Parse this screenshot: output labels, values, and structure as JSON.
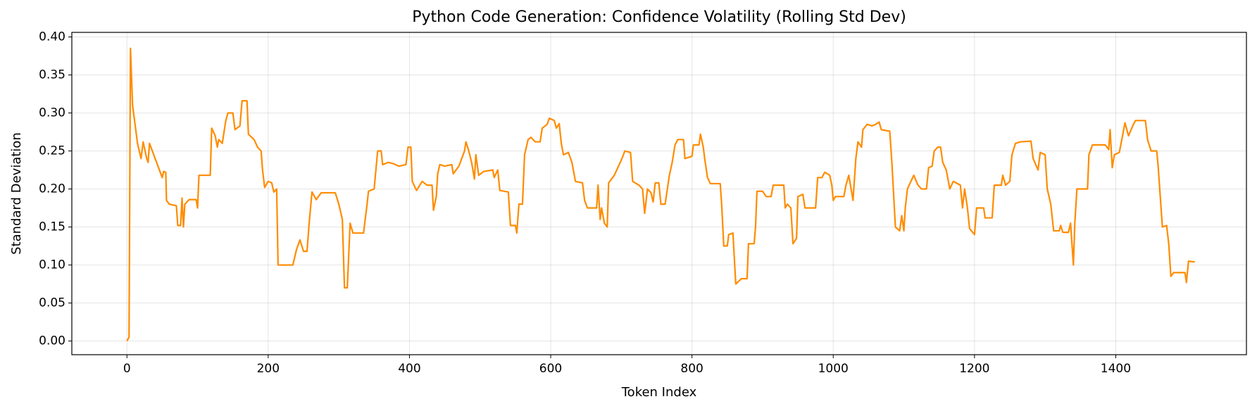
{
  "chart_data": {
    "type": "line",
    "title": "Python Code Generation: Confidence Volatility (Rolling Std Dev)",
    "x_label": "Token Index",
    "y_label": "Standard Deviation",
    "color": "#ff8c00",
    "grid": true,
    "xlim": [
      -78,
      1585
    ],
    "ylim": [
      -0.018,
      0.406
    ],
    "xticks": [
      0,
      200,
      400,
      600,
      800,
      1000,
      1200,
      1400
    ],
    "yticks": [
      {
        "value": 0,
        "label": "0.00"
      },
      0.05,
      {
        "value": 0.1,
        "label": "0.10"
      },
      0.15,
      {
        "value": 0.2,
        "label": "0.20"
      },
      0.25,
      {
        "value": 0.3,
        "label": "0.30"
      },
      0.35,
      {
        "value": 0.4,
        "label": "0.40"
      }
    ],
    "x": [
      0,
      3,
      5,
      8,
      15,
      20,
      23,
      28,
      30,
      32,
      40,
      50,
      52,
      55,
      56,
      60,
      70,
      72,
      76,
      78,
      80,
      82,
      88,
      98,
      100,
      102,
      118,
      120,
      125,
      128,
      130,
      135,
      140,
      143,
      150,
      153,
      160,
      163,
      170,
      172,
      180,
      185,
      190,
      192,
      195,
      200,
      205,
      208,
      212,
      214,
      235,
      240,
      245,
      250,
      255,
      258,
      262,
      268,
      275,
      295,
      300,
      305,
      308,
      312,
      316,
      320,
      335,
      340,
      342,
      350,
      352,
      355,
      360,
      362,
      370,
      378,
      385,
      395,
      398,
      402,
      404,
      410,
      418,
      425,
      432,
      434,
      438,
      440,
      443,
      450,
      460,
      462,
      470,
      478,
      480,
      484,
      488,
      492,
      494,
      498,
      505,
      518,
      520,
      525,
      528,
      540,
      543,
      550,
      552,
      555,
      560,
      563,
      568,
      572,
      578,
      585,
      588,
      595,
      598,
      605,
      608,
      612,
      615,
      618,
      625,
      630,
      635,
      645,
      648,
      652,
      665,
      667,
      670,
      672,
      676,
      680,
      682,
      690,
      695,
      700,
      705,
      713,
      716,
      725,
      730,
      733,
      737,
      742,
      745,
      748,
      753,
      756,
      762,
      768,
      772,
      776,
      780,
      788,
      790,
      800,
      802,
      810,
      812,
      816,
      818,
      822,
      826,
      840,
      842,
      845,
      850,
      852,
      858,
      862,
      870,
      878,
      880,
      888,
      890,
      892,
      900,
      905,
      912,
      915,
      930,
      932,
      935,
      940,
      943,
      948,
      950,
      957,
      960,
      975,
      978,
      984,
      988,
      995,
      998,
      1000,
      1003,
      1015,
      1018,
      1022,
      1028,
      1032,
      1035,
      1040,
      1042,
      1048,
      1055,
      1060,
      1065,
      1068,
      1080,
      1083,
      1088,
      1094,
      1097,
      1100,
      1102,
      1105,
      1110,
      1114,
      1120,
      1125,
      1132,
      1135,
      1140,
      1143,
      1148,
      1152,
      1155,
      1160,
      1165,
      1170,
      1180,
      1183,
      1186,
      1190,
      1193,
      1200,
      1203,
      1213,
      1215,
      1225,
      1228,
      1238,
      1240,
      1244,
      1250,
      1253,
      1258,
      1265,
      1280,
      1283,
      1290,
      1293,
      1300,
      1303,
      1308,
      1312,
      1320,
      1322,
      1325,
      1333,
      1336,
      1340,
      1342,
      1345,
      1355,
      1360,
      1362,
      1367,
      1385,
      1390,
      1392,
      1395,
      1398,
      1405,
      1410,
      1413,
      1418,
      1425,
      1428,
      1442,
      1445,
      1450,
      1458,
      1460,
      1463,
      1466,
      1472,
      1475,
      1478,
      1482,
      1498,
      1500,
      1503,
      1512
    ],
    "values": [
      0.0,
      0.005,
      0.385,
      0.31,
      0.26,
      0.24,
      0.262,
      0.24,
      0.235,
      0.26,
      0.24,
      0.215,
      0.223,
      0.222,
      0.185,
      0.18,
      0.178,
      0.152,
      0.152,
      0.188,
      0.15,
      0.18,
      0.186,
      0.186,
      0.175,
      0.218,
      0.218,
      0.28,
      0.27,
      0.255,
      0.265,
      0.26,
      0.29,
      0.3,
      0.3,
      0.278,
      0.283,
      0.316,
      0.316,
      0.272,
      0.265,
      0.255,
      0.25,
      0.225,
      0.202,
      0.21,
      0.208,
      0.196,
      0.2,
      0.1,
      0.1,
      0.12,
      0.133,
      0.118,
      0.118,
      0.155,
      0.196,
      0.186,
      0.195,
      0.195,
      0.18,
      0.16,
      0.07,
      0.07,
      0.155,
      0.142,
      0.142,
      0.18,
      0.197,
      0.2,
      0.22,
      0.25,
      0.25,
      0.232,
      0.235,
      0.233,
      0.23,
      0.232,
      0.255,
      0.255,
      0.21,
      0.198,
      0.21,
      0.205,
      0.205,
      0.172,
      0.19,
      0.22,
      0.232,
      0.23,
      0.232,
      0.22,
      0.23,
      0.25,
      0.262,
      0.25,
      0.235,
      0.213,
      0.245,
      0.218,
      0.223,
      0.225,
      0.215,
      0.225,
      0.198,
      0.196,
      0.152,
      0.152,
      0.142,
      0.18,
      0.18,
      0.245,
      0.265,
      0.268,
      0.262,
      0.262,
      0.28,
      0.285,
      0.293,
      0.29,
      0.28,
      0.286,
      0.26,
      0.245,
      0.248,
      0.235,
      0.21,
      0.208,
      0.185,
      0.175,
      0.175,
      0.205,
      0.16,
      0.175,
      0.155,
      0.15,
      0.208,
      0.218,
      0.228,
      0.238,
      0.25,
      0.248,
      0.21,
      0.205,
      0.2,
      0.168,
      0.2,
      0.195,
      0.183,
      0.208,
      0.208,
      0.18,
      0.18,
      0.218,
      0.235,
      0.258,
      0.265,
      0.265,
      0.24,
      0.243,
      0.258,
      0.258,
      0.272,
      0.255,
      0.24,
      0.215,
      0.207,
      0.207,
      0.18,
      0.125,
      0.125,
      0.14,
      0.142,
      0.075,
      0.082,
      0.082,
      0.128,
      0.128,
      0.15,
      0.197,
      0.197,
      0.19,
      0.19,
      0.205,
      0.205,
      0.175,
      0.18,
      0.175,
      0.128,
      0.135,
      0.19,
      0.193,
      0.175,
      0.175,
      0.215,
      0.215,
      0.222,
      0.218,
      0.205,
      0.185,
      0.19,
      0.19,
      0.205,
      0.218,
      0.185,
      0.24,
      0.262,
      0.255,
      0.278,
      0.285,
      0.283,
      0.285,
      0.288,
      0.278,
      0.276,
      0.235,
      0.15,
      0.145,
      0.165,
      0.145,
      0.175,
      0.2,
      0.21,
      0.218,
      0.205,
      0.2,
      0.2,
      0.228,
      0.23,
      0.25,
      0.255,
      0.255,
      0.235,
      0.225,
      0.2,
      0.21,
      0.205,
      0.175,
      0.2,
      0.175,
      0.148,
      0.14,
      0.175,
      0.175,
      0.162,
      0.162,
      0.205,
      0.205,
      0.218,
      0.205,
      0.21,
      0.245,
      0.26,
      0.262,
      0.263,
      0.24,
      0.225,
      0.248,
      0.245,
      0.2,
      0.18,
      0.145,
      0.145,
      0.152,
      0.143,
      0.143,
      0.155,
      0.1,
      0.155,
      0.2,
      0.2,
      0.2,
      0.245,
      0.258,
      0.258,
      0.252,
      0.278,
      0.228,
      0.245,
      0.248,
      0.272,
      0.287,
      0.27,
      0.285,
      0.29,
      0.29,
      0.265,
      0.25,
      0.25,
      0.23,
      0.19,
      0.15,
      0.152,
      0.128,
      0.085,
      0.09,
      0.09,
      0.077,
      0.105,
      0.104
    ]
  }
}
